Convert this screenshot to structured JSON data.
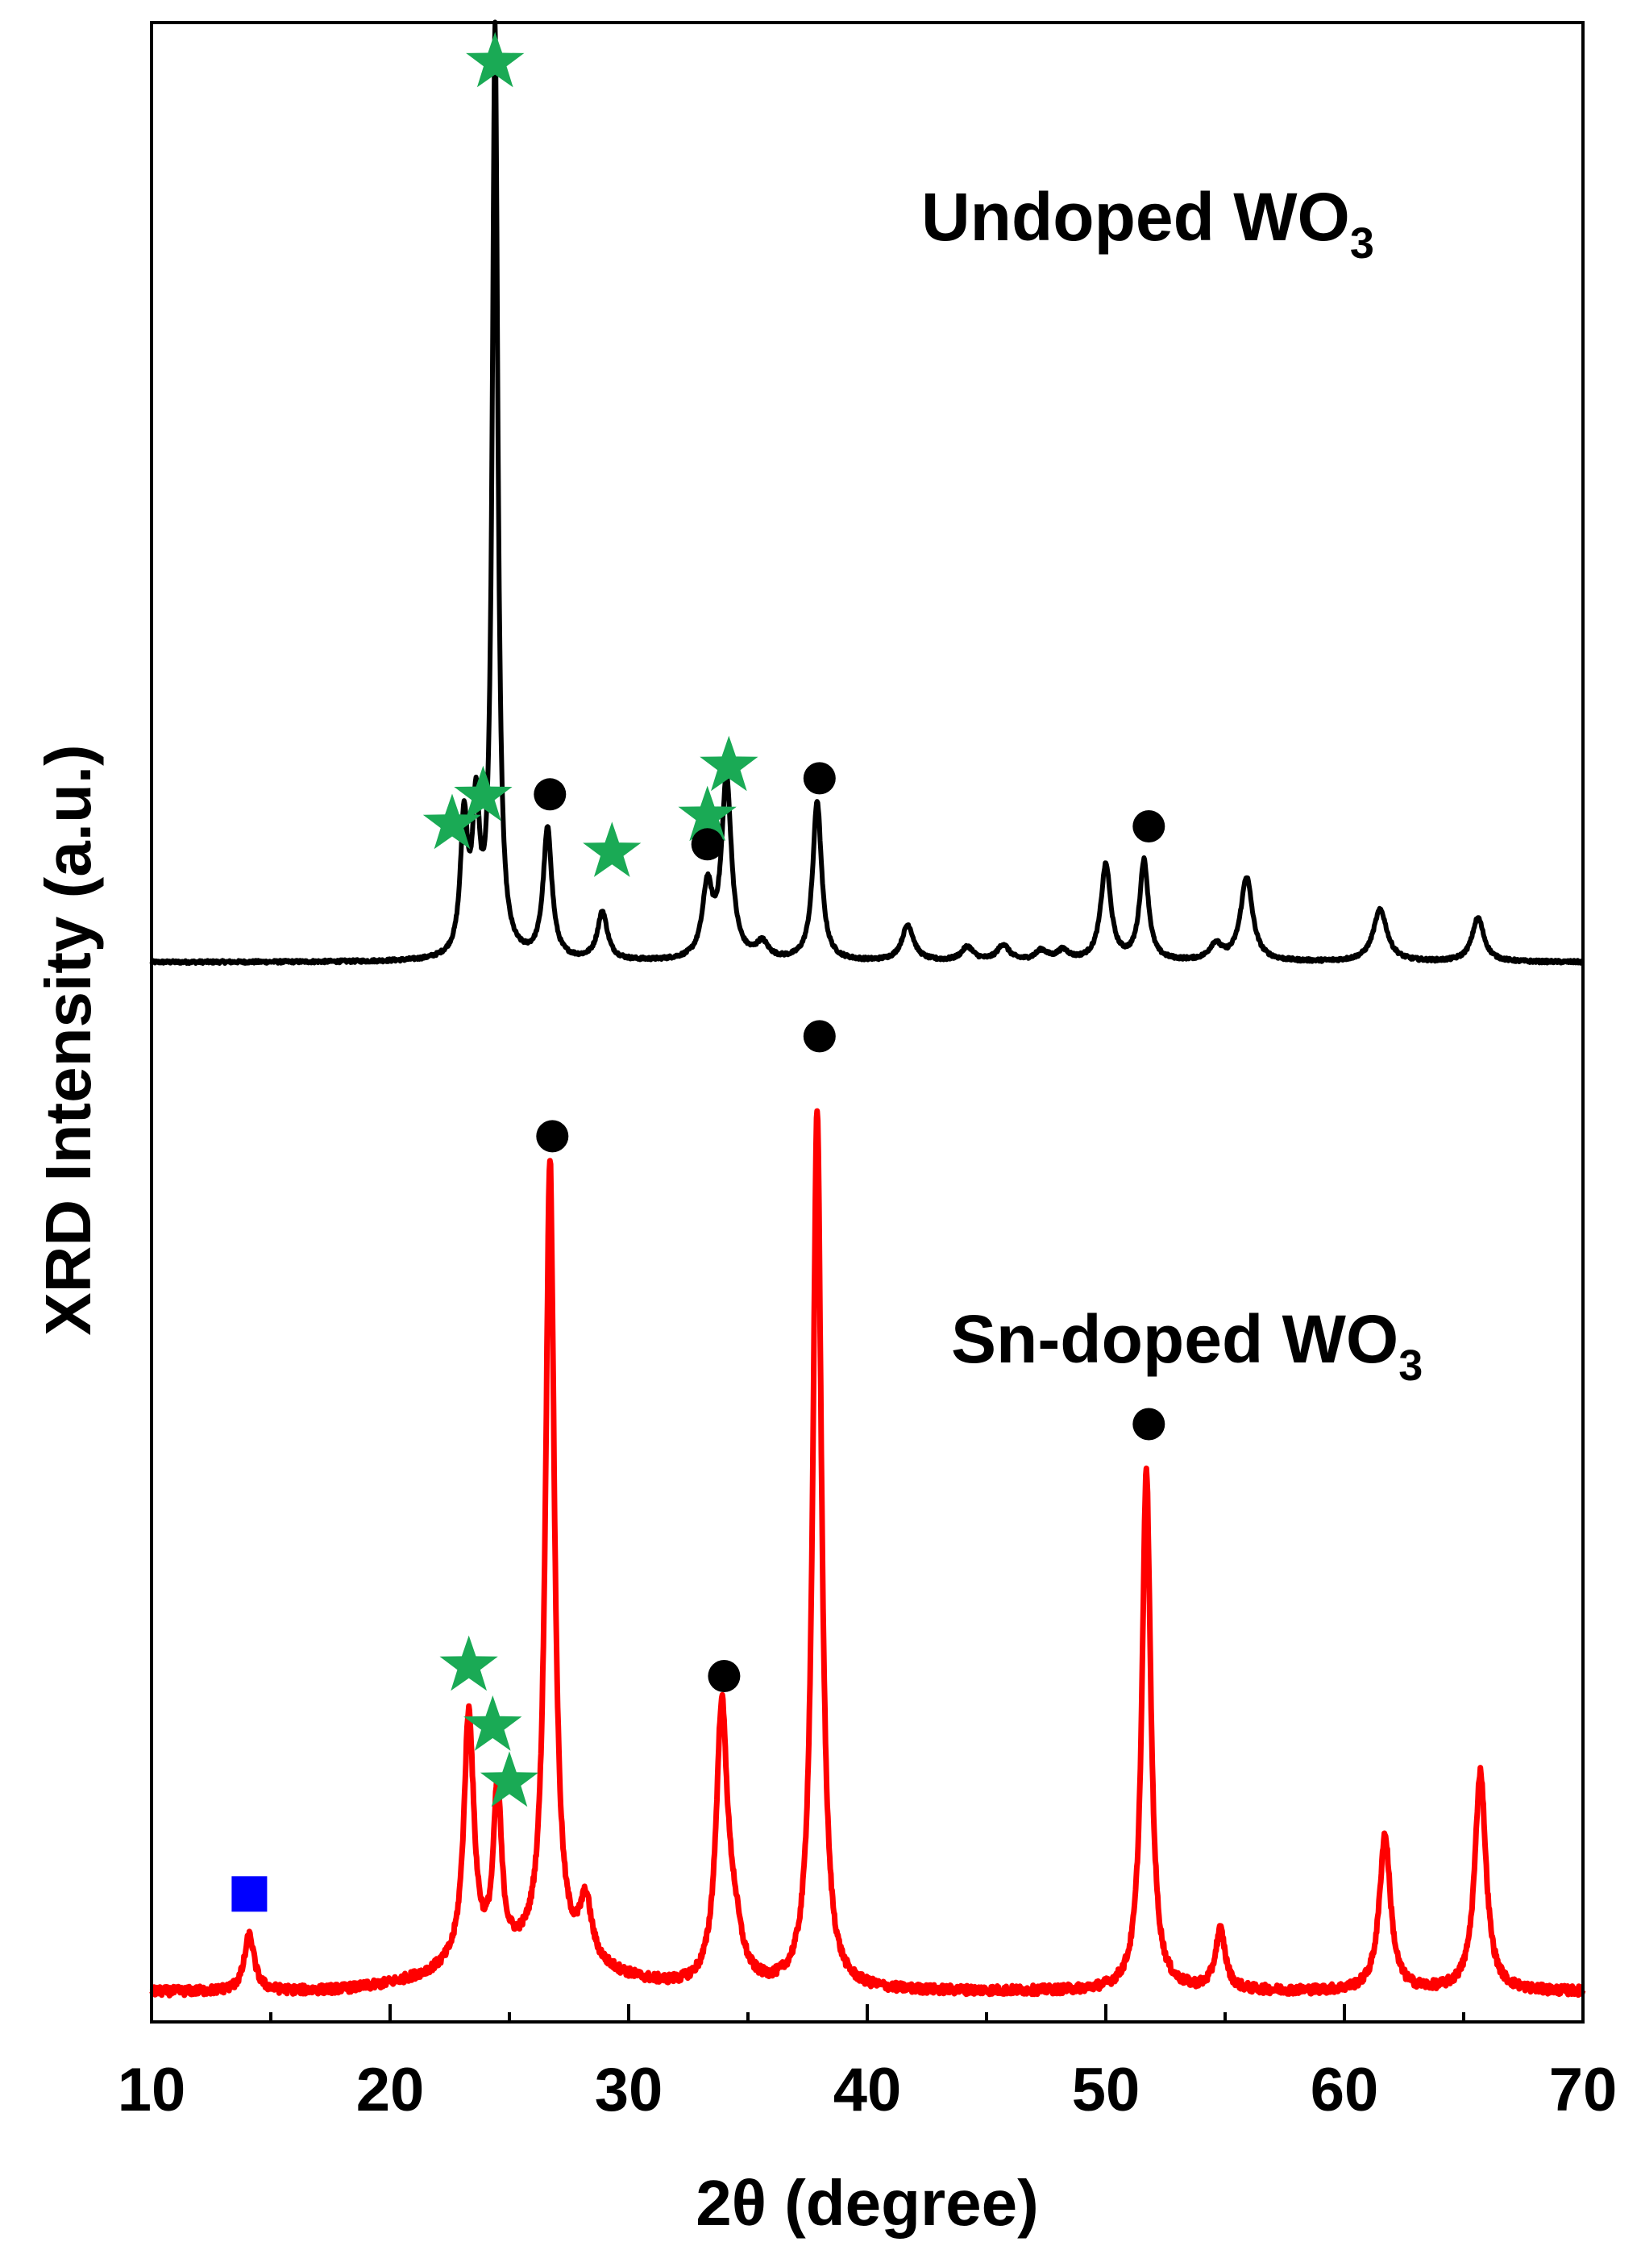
{
  "chart_data": {
    "type": "line",
    "title": "",
    "xlabel": "2θ (degree)",
    "ylabel": "XRD Intensity (a.u.)",
    "xlim": [
      10,
      70
    ],
    "ylim": [
      0,
      100
    ],
    "xticks": [
      "10",
      "20",
      "30",
      "40",
      "50",
      "60",
      "70"
    ],
    "yticks": [],
    "grid": false,
    "series": [
      {
        "name": "Undoped WO3",
        "label_main": "Undoped WO",
        "label_sub": "3",
        "color": "#000000",
        "baseline": 53.0,
        "peaks": [
          {
            "x": 23.1,
            "h": 6.7,
            "w": 0.18
          },
          {
            "x": 23.6,
            "h": 7.0,
            "w": 0.18
          },
          {
            "x": 24.4,
            "h": 46.5,
            "w": 0.14
          },
          {
            "x": 26.6,
            "h": 6.5,
            "w": 0.22
          },
          {
            "x": 28.9,
            "h": 2.4,
            "w": 0.25
          },
          {
            "x": 33.3,
            "h": 3.5,
            "w": 0.25
          },
          {
            "x": 34.1,
            "h": 9.0,
            "w": 0.25
          },
          {
            "x": 35.6,
            "h": 0.8,
            "w": 0.3
          },
          {
            "x": 37.9,
            "h": 8.0,
            "w": 0.22
          },
          {
            "x": 41.7,
            "h": 1.8,
            "w": 0.3
          },
          {
            "x": 44.2,
            "h": 0.7,
            "w": 0.3
          },
          {
            "x": 45.7,
            "h": 0.8,
            "w": 0.3
          },
          {
            "x": 47.3,
            "h": 0.5,
            "w": 0.3
          },
          {
            "x": 48.2,
            "h": 0.5,
            "w": 0.3
          },
          {
            "x": 50.0,
            "h": 4.8,
            "w": 0.25
          },
          {
            "x": 51.6,
            "h": 5.0,
            "w": 0.22
          },
          {
            "x": 54.6,
            "h": 0.8,
            "w": 0.3
          },
          {
            "x": 55.9,
            "h": 4.2,
            "w": 0.3
          },
          {
            "x": 61.5,
            "h": 2.6,
            "w": 0.35
          },
          {
            "x": 65.6,
            "h": 2.2,
            "w": 0.3
          }
        ]
      },
      {
        "name": "Sn-doped WO3",
        "label_main": "Sn-doped WO",
        "label_sub": "3",
        "color": "#ff0000",
        "baseline": 1.5,
        "peaks": [
          {
            "x": 14.1,
            "h": 2.8,
            "w": 0.25
          },
          {
            "x": 23.3,
            "h": 12.5,
            "w": 0.25
          },
          {
            "x": 24.5,
            "h": 8.3,
            "w": 0.2
          },
          {
            "x": 26.7,
            "h": 40.0,
            "w": 0.22
          },
          {
            "x": 28.2,
            "h": 3.0,
            "w": 0.3
          },
          {
            "x": 33.9,
            "h": 13.5,
            "w": 0.28
          },
          {
            "x": 34.4,
            "h": 2.5,
            "w": 0.4
          },
          {
            "x": 37.9,
            "h": 44.0,
            "w": 0.22
          },
          {
            "x": 51.7,
            "h": 26.0,
            "w": 0.22
          },
          {
            "x": 54.8,
            "h": 3.0,
            "w": 0.25
          },
          {
            "x": 61.7,
            "h": 7.8,
            "w": 0.28
          },
          {
            "x": 65.7,
            "h": 11.0,
            "w": 0.28
          }
        ]
      }
    ],
    "markers": [
      {
        "shape": "star",
        "color": "#1aaa55",
        "x": 24.4,
        "y": 98.0
      },
      {
        "shape": "star",
        "color": "#1aaa55",
        "x": 22.6,
        "y": 59.9
      },
      {
        "shape": "star",
        "color": "#1aaa55",
        "x": 23.9,
        "y": 61.3
      },
      {
        "shape": "circle",
        "color": "#000000",
        "x": 26.7,
        "y": 61.4
      },
      {
        "shape": "star",
        "color": "#1aaa55",
        "x": 29.3,
        "y": 58.5
      },
      {
        "shape": "star",
        "color": "#1aaa55",
        "x": 33.3,
        "y": 60.3
      },
      {
        "shape": "circle",
        "color": "#000000",
        "x": 33.3,
        "y": 58.9
      },
      {
        "shape": "star",
        "color": "#1aaa55",
        "x": 34.2,
        "y": 62.8
      },
      {
        "shape": "circle",
        "color": "#000000",
        "x": 38.0,
        "y": 62.2
      },
      {
        "shape": "circle",
        "color": "#000000",
        "x": 51.8,
        "y": 59.8
      },
      {
        "shape": "circle",
        "color": "#000000",
        "x": 38.0,
        "y": 49.3
      },
      {
        "shape": "circle",
        "color": "#000000",
        "x": 26.8,
        "y": 44.3
      },
      {
        "shape": "circle",
        "color": "#000000",
        "x": 51.8,
        "y": 29.9
      },
      {
        "shape": "circle",
        "color": "#000000",
        "x": 34.0,
        "y": 17.3
      },
      {
        "shape": "star",
        "color": "#1aaa55",
        "x": 23.3,
        "y": 17.8
      },
      {
        "shape": "star",
        "color": "#1aaa55",
        "x": 24.3,
        "y": 14.8
      },
      {
        "shape": "star",
        "color": "#1aaa55",
        "x": 25.0,
        "y": 12.0
      },
      {
        "shape": "square",
        "color": "#0000ff",
        "x": 14.1,
        "y": 6.4
      }
    ]
  }
}
